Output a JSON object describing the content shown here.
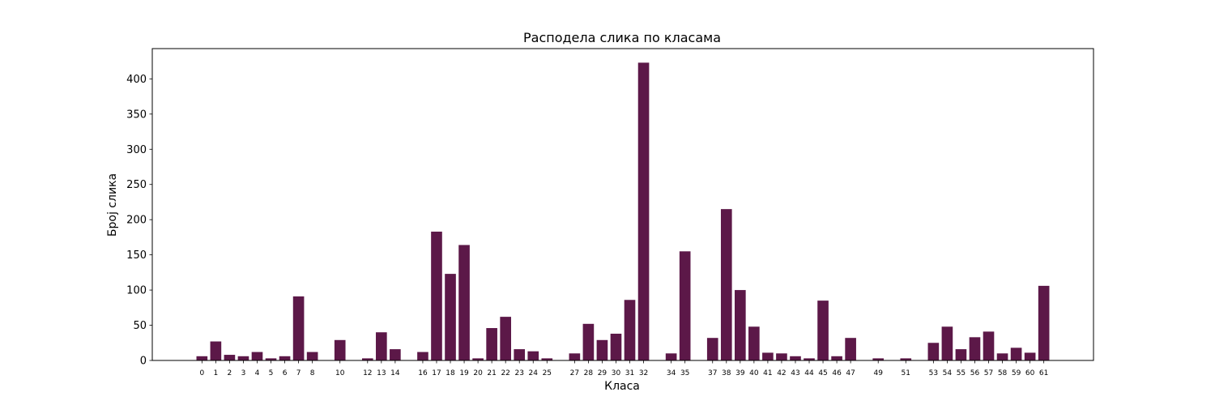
{
  "chart_data": {
    "type": "bar",
    "title": "Расподела слика по класама",
    "xlabel": "Класа",
    "ylabel": "Број слика",
    "ylim": [
      0,
      443
    ],
    "xlim": [
      -3.6,
      64.6
    ],
    "yticks": [
      0,
      50,
      100,
      150,
      200,
      250,
      300,
      350,
      400
    ],
    "bar_color": "#5c1848",
    "grid": false,
    "categories": [
      "0",
      "1",
      "2",
      "3",
      "4",
      "5",
      "6",
      "7",
      "8",
      "10",
      "12",
      "13",
      "14",
      "16",
      "17",
      "18",
      "19",
      "20",
      "21",
      "22",
      "23",
      "24",
      "25",
      "27",
      "28",
      "29",
      "30",
      "31",
      "32",
      "34",
      "35",
      "37",
      "38",
      "39",
      "40",
      "41",
      "42",
      "43",
      "44",
      "45",
      "46",
      "47",
      "49",
      "51",
      "53",
      "54",
      "55",
      "56",
      "57",
      "58",
      "59",
      "60",
      "61"
    ],
    "values": [
      6,
      27,
      8,
      6,
      12,
      3,
      6,
      91,
      12,
      29,
      3,
      40,
      16,
      12,
      183,
      123,
      164,
      3,
      46,
      62,
      16,
      13,
      3,
      10,
      52,
      29,
      38,
      86,
      423,
      10,
      155,
      32,
      215,
      100,
      48,
      11,
      10,
      6,
      3,
      85,
      6,
      32,
      3,
      3,
      25,
      48,
      16,
      33,
      41,
      10,
      18,
      11,
      106
    ]
  }
}
